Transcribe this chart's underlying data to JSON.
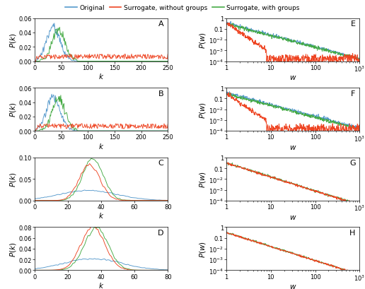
{
  "colors": {
    "blue": "#5599cc",
    "red": "#ee4422",
    "green": "#44aa44"
  },
  "legend_labels": [
    "Original",
    "Surrogate, without groups",
    "Surrogate, with groups"
  ],
  "panel_labels": [
    "A",
    "B",
    "C",
    "D",
    "E",
    "F",
    "G",
    "H"
  ],
  "tick_fontsize": 6.0,
  "label_fontsize": 7.5
}
